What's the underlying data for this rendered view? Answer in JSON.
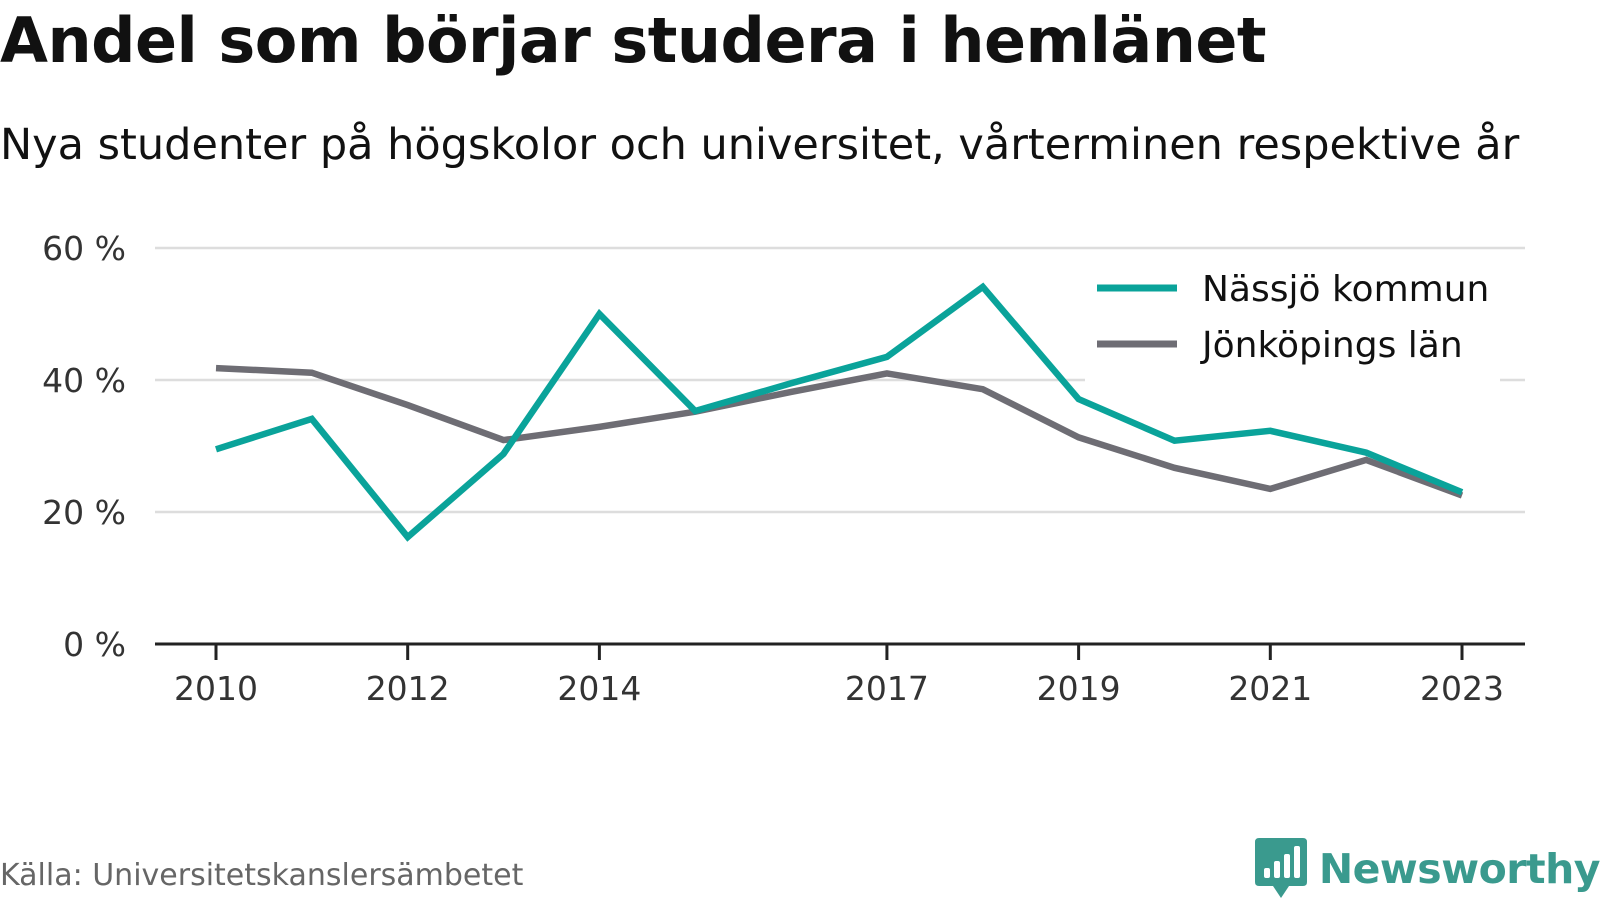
{
  "header": {
    "title": "Andel som börjar studera i hemlänet",
    "subtitle": "Nya studenter på högskolor och universitet, vårterminen respektive år"
  },
  "footer": {
    "source": "Källa: Universitetskanslersämbetet",
    "brand": "Newsworthy",
    "brand_icon": "bar-chart-speech-bubble-icon"
  },
  "colors": {
    "nassjo": "#0aa39a",
    "jonkoping": "#6e6d74",
    "grid": "#dddddd",
    "axis": "#222222",
    "brand": "#3a9a8e"
  },
  "chart_data": {
    "type": "line",
    "title": "Andel som börjar studera i hemlänet",
    "subtitle": "Nya studenter på högskolor och universitet, vårterminen respektive år",
    "xlabel": "",
    "ylabel": "",
    "x": [
      2010,
      2011,
      2012,
      2013,
      2014,
      2015,
      2016,
      2017,
      2018,
      2019,
      2020,
      2021,
      2022,
      2023
    ],
    "x_ticks": [
      2010,
      2012,
      2014,
      2017,
      2019,
      2021,
      2023
    ],
    "x_tick_labels": [
      "2010",
      "2012",
      "2014",
      "2017",
      "2019",
      "2021",
      "2023"
    ],
    "ylim": [
      0,
      60
    ],
    "y_ticks": [
      0,
      20,
      40,
      60
    ],
    "y_tick_labels": [
      "0 %",
      "20 %",
      "40 %",
      "60 %"
    ],
    "grid": true,
    "legend": "top-right",
    "series": [
      {
        "name": "Nässjö kommun",
        "color": "#0aa39a",
        "values": [
          29.5,
          34.1,
          16.2,
          28.8,
          50.0,
          35.3,
          39.5,
          43.5,
          54.1,
          37.1,
          30.8,
          32.3,
          29.0,
          23.0
        ]
      },
      {
        "name": "Jönköpings län",
        "color": "#6e6d74",
        "values": [
          41.8,
          41.1,
          36.2,
          30.9,
          32.9,
          35.2,
          38.2,
          41.0,
          38.6,
          31.3,
          26.7,
          23.5,
          27.9,
          22.5
        ]
      }
    ]
  }
}
